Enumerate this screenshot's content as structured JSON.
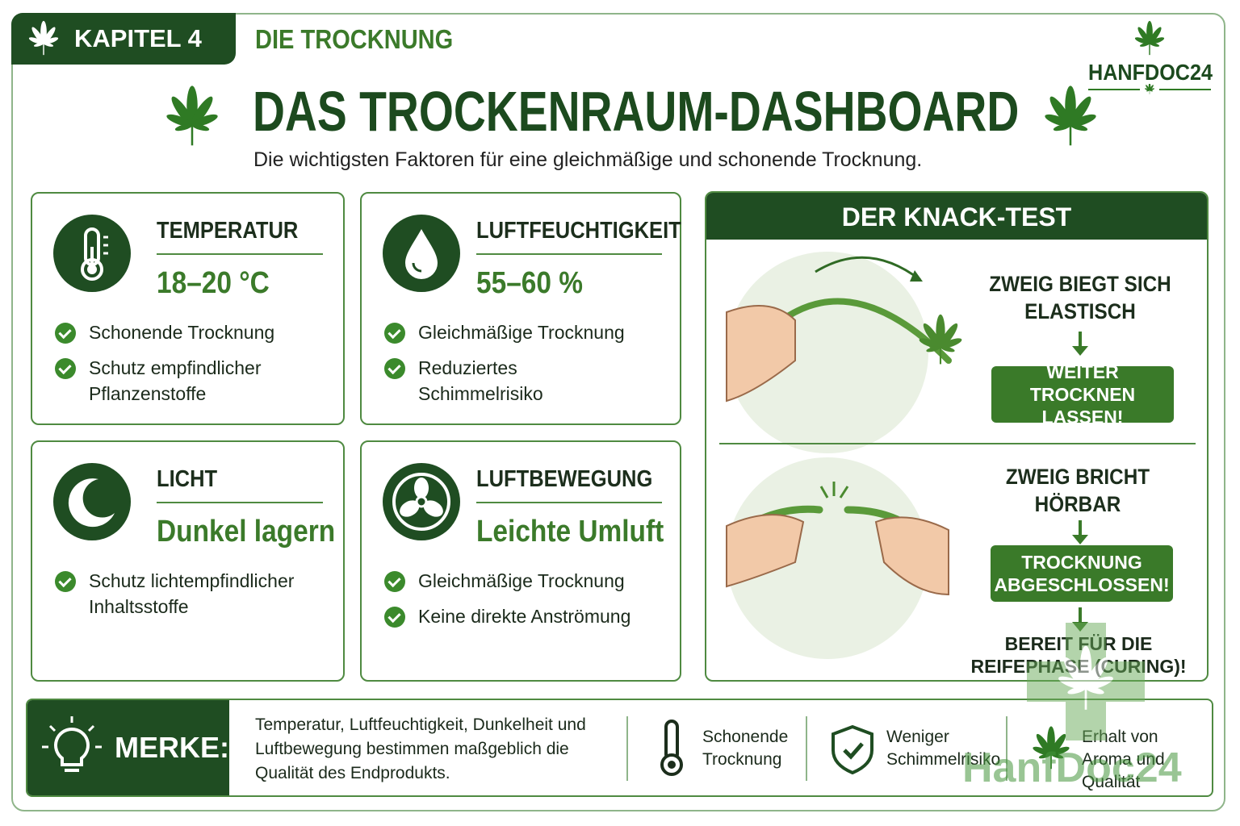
{
  "header": {
    "chapter": "KAPITEL 4",
    "section": "DIE TROCKNUNG",
    "title": "DAS TROCKENRAUM-DASHBOARD",
    "subtitle": "Die wichtigsten Faktoren für eine gleichmäßige und schonende Trocknung.",
    "brand": "HANFDOC24"
  },
  "cards": [
    {
      "title": "TEMPERATUR",
      "value": "18–20 °C",
      "points": [
        "Schonende Trocknung",
        "Schutz empfindlicher Pflanzenstoffe"
      ]
    },
    {
      "title": "LUFTFEUCHTIGKEIT",
      "value": "55–60 %",
      "points": [
        "Gleichmäßige Trocknung",
        "Reduziertes Schimmelrisiko"
      ]
    },
    {
      "title": "LICHT",
      "value": "Dunkel lagern",
      "points": [
        "Schutz lichtempfindlicher Inhaltsstoffe"
      ]
    },
    {
      "title": "LUFTBEWEGUNG",
      "value": "Leichte Umluft",
      "points": [
        "Gleichmäßige Trocknung",
        "Keine direkte Anströmung"
      ]
    }
  ],
  "knack_test": {
    "title": "DER KNACK-TEST",
    "steps": [
      {
        "condition": "ZWEIG BIEGT SICH ELASTISCH",
        "action": "WEITER TROCKNEN LASSEN!"
      },
      {
        "condition": "ZWEIG BRICHT HÖRBAR",
        "action": "TROCKNUNG ABGESCHLOSSEN!"
      }
    ],
    "result": "BEREIT FÜR DIE REIFEPHASE (CURING)!"
  },
  "footer": {
    "label": "MERKE:",
    "text": "Temperatur, Luftfeuchtigkeit, Dunkelheit und Luftbewegung bestimmen maßgeblich die Qualität des Endprodukts.",
    "benefits": [
      "Schonende Trocknung",
      "Weniger Schimmelrisiko",
      "Erhalt von Aroma und Qualität"
    ]
  },
  "watermark": "HanfDoc24"
}
